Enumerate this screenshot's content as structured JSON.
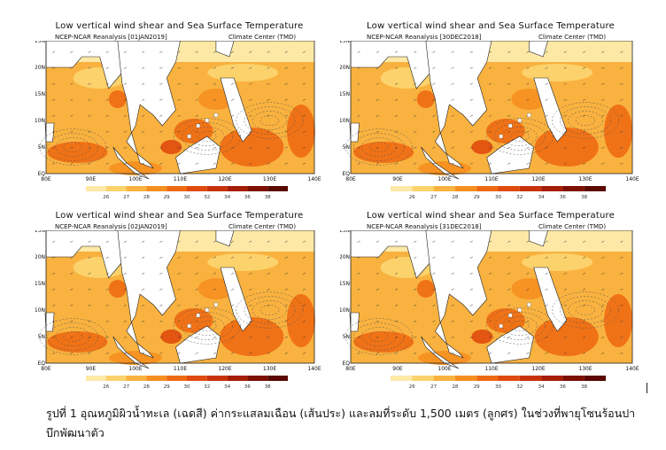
{
  "panels": [
    {
      "title": "Low vertical wind shear and Sea Surface Temperature",
      "source": "NCEP-NCAR Reanalysis",
      "date": "[01JAN2019]",
      "center": "Climate Center (TMD)"
    },
    {
      "title": "Low vertical wind shear and Sea Surface Temperature",
      "source": "NCEP-NCAR Reanalysis",
      "date": "[30DEC2018]",
      "center": "Climate Center (TMD)"
    },
    {
      "title": "Low vertical wind shear and Sea Surface Temperature",
      "source": "NCEP-NCAR Reanalysis",
      "date": "[02JAN2019]",
      "center": "Climate Center (TMD)"
    },
    {
      "title": "Low vertical wind shear and Sea Surface Temperature",
      "source": "NCEP-NCAR Reanalysis",
      "date": "[31DEC2018]",
      "center": "Climate Center (TMD)"
    }
  ],
  "axes": {
    "lon_labels": [
      "80E",
      "90E",
      "100E",
      "110E",
      "120E",
      "130E",
      "140E"
    ],
    "lat_labels": [
      "EQ",
      "5N",
      "10N",
      "15N",
      "20N",
      "25N"
    ]
  },
  "colorbar": {
    "labels": [
      "26",
      "27",
      "28",
      "29",
      "30",
      "32",
      "34",
      "36",
      "38"
    ],
    "colors": [
      "#fde8a6",
      "#fbd26b",
      "#f9b23f",
      "#f58f1f",
      "#ee6a12",
      "#e04a0c",
      "#c83208",
      "#a51d05",
      "#7d0f02",
      "#5a0800"
    ]
  },
  "caption": "รูปที่ 1 อุณหภูมิผิวน้ำทะเล (เฉดสี) ค่ากระแสลมเฉือน (เส้นประ) และลมที่ระดับ 1,500 เมตร (ลูกศร) ในช่วงที่พายุโซนร้อนปาบึกพัฒนาตัว"
}
